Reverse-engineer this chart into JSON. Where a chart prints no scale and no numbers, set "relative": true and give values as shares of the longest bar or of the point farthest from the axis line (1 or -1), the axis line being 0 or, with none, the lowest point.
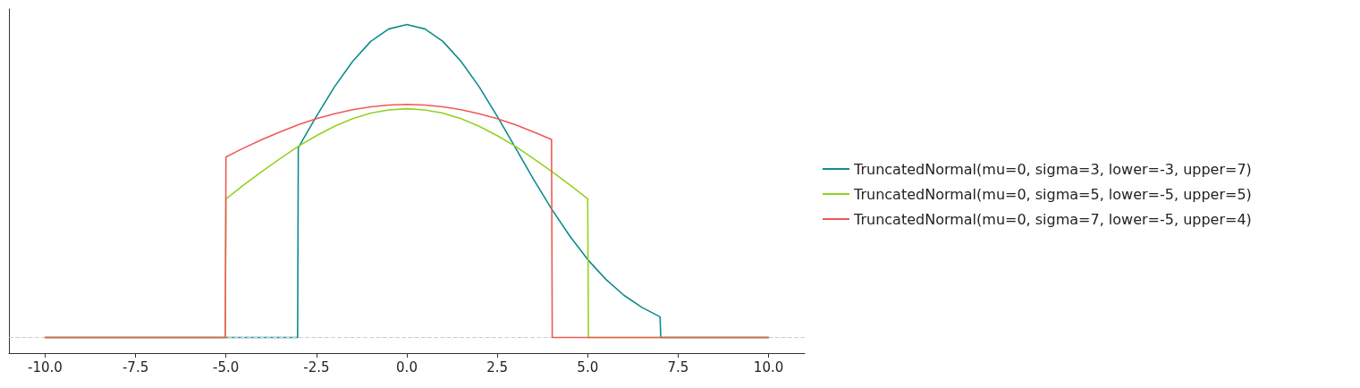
{
  "chart_data": {
    "type": "line",
    "relative": true,
    "legend": "right",
    "grid": false,
    "marker": "none",
    "line_style": "solid",
    "xlim": [
      -11,
      11
    ],
    "xticks": [
      {
        "value": -10,
        "label": "-10.0"
      },
      {
        "value": -7.5,
        "label": "-7.5"
      },
      {
        "value": -5,
        "label": "-5.0"
      },
      {
        "value": -2.5,
        "label": "-2.5"
      },
      {
        "value": 0,
        "label": "0.0"
      },
      {
        "value": 2.5,
        "label": "2.5"
      },
      {
        "value": 5,
        "label": "5.0"
      },
      {
        "value": 7.5,
        "label": "7.5"
      },
      {
        "value": 10,
        "label": "10.0"
      }
    ],
    "ref_lines": [
      {
        "axis": "y",
        "value": 0,
        "color": "#cccccc",
        "line_style": "dashed"
      }
    ],
    "series": [
      {
        "name": "TruncatedNormal(mu=0, sigma=3, lower=-3, upper=7)",
        "color": "#0f8b8d",
        "x": [
          -10,
          -3.02,
          -3,
          -2.5,
          -2,
          -1.5,
          -1,
          -0.5,
          0,
          0.5,
          1,
          1.5,
          2,
          2.5,
          3,
          3.5,
          4,
          4.5,
          5,
          5.5,
          6,
          6.5,
          7,
          7.02,
          10
        ],
        "values": [
          0,
          0,
          0.607,
          0.707,
          0.801,
          0.882,
          0.946,
          0.986,
          1,
          0.986,
          0.946,
          0.882,
          0.801,
          0.707,
          0.607,
          0.506,
          0.411,
          0.325,
          0.249,
          0.186,
          0.135,
          0.096,
          0.066,
          0,
          0
        ]
      },
      {
        "name": "TruncatedNormal(mu=0, sigma=5, lower=-5, upper=5)",
        "color": "#94d31f",
        "x": [
          -10,
          -5.02,
          -5,
          -4.5,
          -4,
          -3.5,
          -3,
          -2.5,
          -2,
          -1.5,
          -1,
          -0.5,
          0,
          0.5,
          1,
          1.5,
          2,
          2.5,
          3,
          3.5,
          4,
          4.5,
          5,
          5.02,
          10
        ],
        "values": [
          0,
          0,
          0.443,
          0.488,
          0.531,
          0.572,
          0.611,
          0.645,
          0.675,
          0.699,
          0.717,
          0.727,
          0.731,
          0.727,
          0.717,
          0.699,
          0.675,
          0.645,
          0.611,
          0.572,
          0.531,
          0.488,
          0.443,
          0,
          0
        ]
      },
      {
        "name": "TruncatedNormal(mu=0, sigma=7, lower=-5, upper=4)",
        "color": "#ee5a57",
        "x": [
          -10,
          -5.02,
          -5,
          -4.5,
          -4,
          -3.5,
          -3,
          -2.5,
          -2,
          -1.5,
          -1,
          -0.5,
          0,
          0.5,
          1,
          1.5,
          2,
          2.5,
          3,
          3.5,
          4,
          4.02,
          10
        ],
        "values": [
          0,
          0,
          0.577,
          0.606,
          0.633,
          0.657,
          0.68,
          0.699,
          0.715,
          0.728,
          0.737,
          0.743,
          0.745,
          0.743,
          0.737,
          0.728,
          0.715,
          0.699,
          0.68,
          0.657,
          0.633,
          0,
          0
        ]
      }
    ]
  }
}
